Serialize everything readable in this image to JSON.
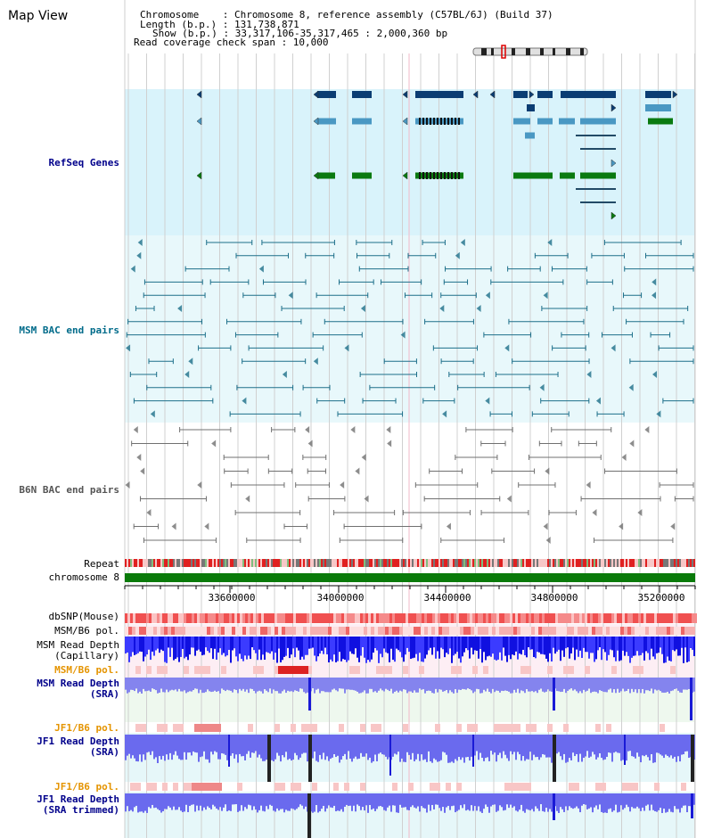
{
  "page_title": "Map View",
  "info": {
    "chromosome_line": "Chromosome    : Chromosome 8, reference assembly (C57BL/6J) (Build 37)",
    "length_line": "Length (b.p.) : 131,738,871",
    "show_line": "Show (b.p.) : 33,317,106-35,317,465 : 2,000,360 bp",
    "span_line": "Read coverage check span : 10,000"
  },
  "tracks": {
    "refseq": "RefSeq Genes",
    "msm_bac": "MSM BAC end pairs",
    "b6n_bac": "B6N BAC end pairs",
    "repeat": "Repeat",
    "chromosome": "chromosome 8",
    "dbsnp": "dbSNP(Mouse)",
    "msm_b6_pol": "MSM/B6 pol.",
    "msm_depth_cap_1": "MSM Read Depth",
    "msm_depth_cap_2": "(Capillary)",
    "msm_b6_pol_2": "MSM/B6 pol.",
    "msm_depth_sra_1": "MSM Read Depth",
    "msm_depth_sra_2": "(SRA)",
    "jf1_b6_pol": "JF1/B6 pol.",
    "jf1_depth_sra_1": "JF1 Read Depth",
    "jf1_depth_sra_2": "(SRA)",
    "jf1_b6_pol_2": "JF1/B6 pol.",
    "jf1_depth_trim_1": "JF1 Read Depth",
    "jf1_depth_trim_2": "(SRA trimmed)"
  },
  "axis": {
    "ticks": [
      "33600000",
      "34000000",
      "34400000",
      "34800000",
      "35200000"
    ]
  },
  "colors": {
    "refseq_bg": "#d9f3fb",
    "msm_bac_bg": "#e8f8fb",
    "gene_dark": "#0b3d73",
    "gene_mid": "#4a98c3",
    "gene_green": "#0a7a10",
    "chromosome": "#0a7a0a",
    "label_blue": "#00008b",
    "label_orange": "#e59400",
    "label_teal": "#006b8a",
    "label_gray": "#555555"
  }
}
